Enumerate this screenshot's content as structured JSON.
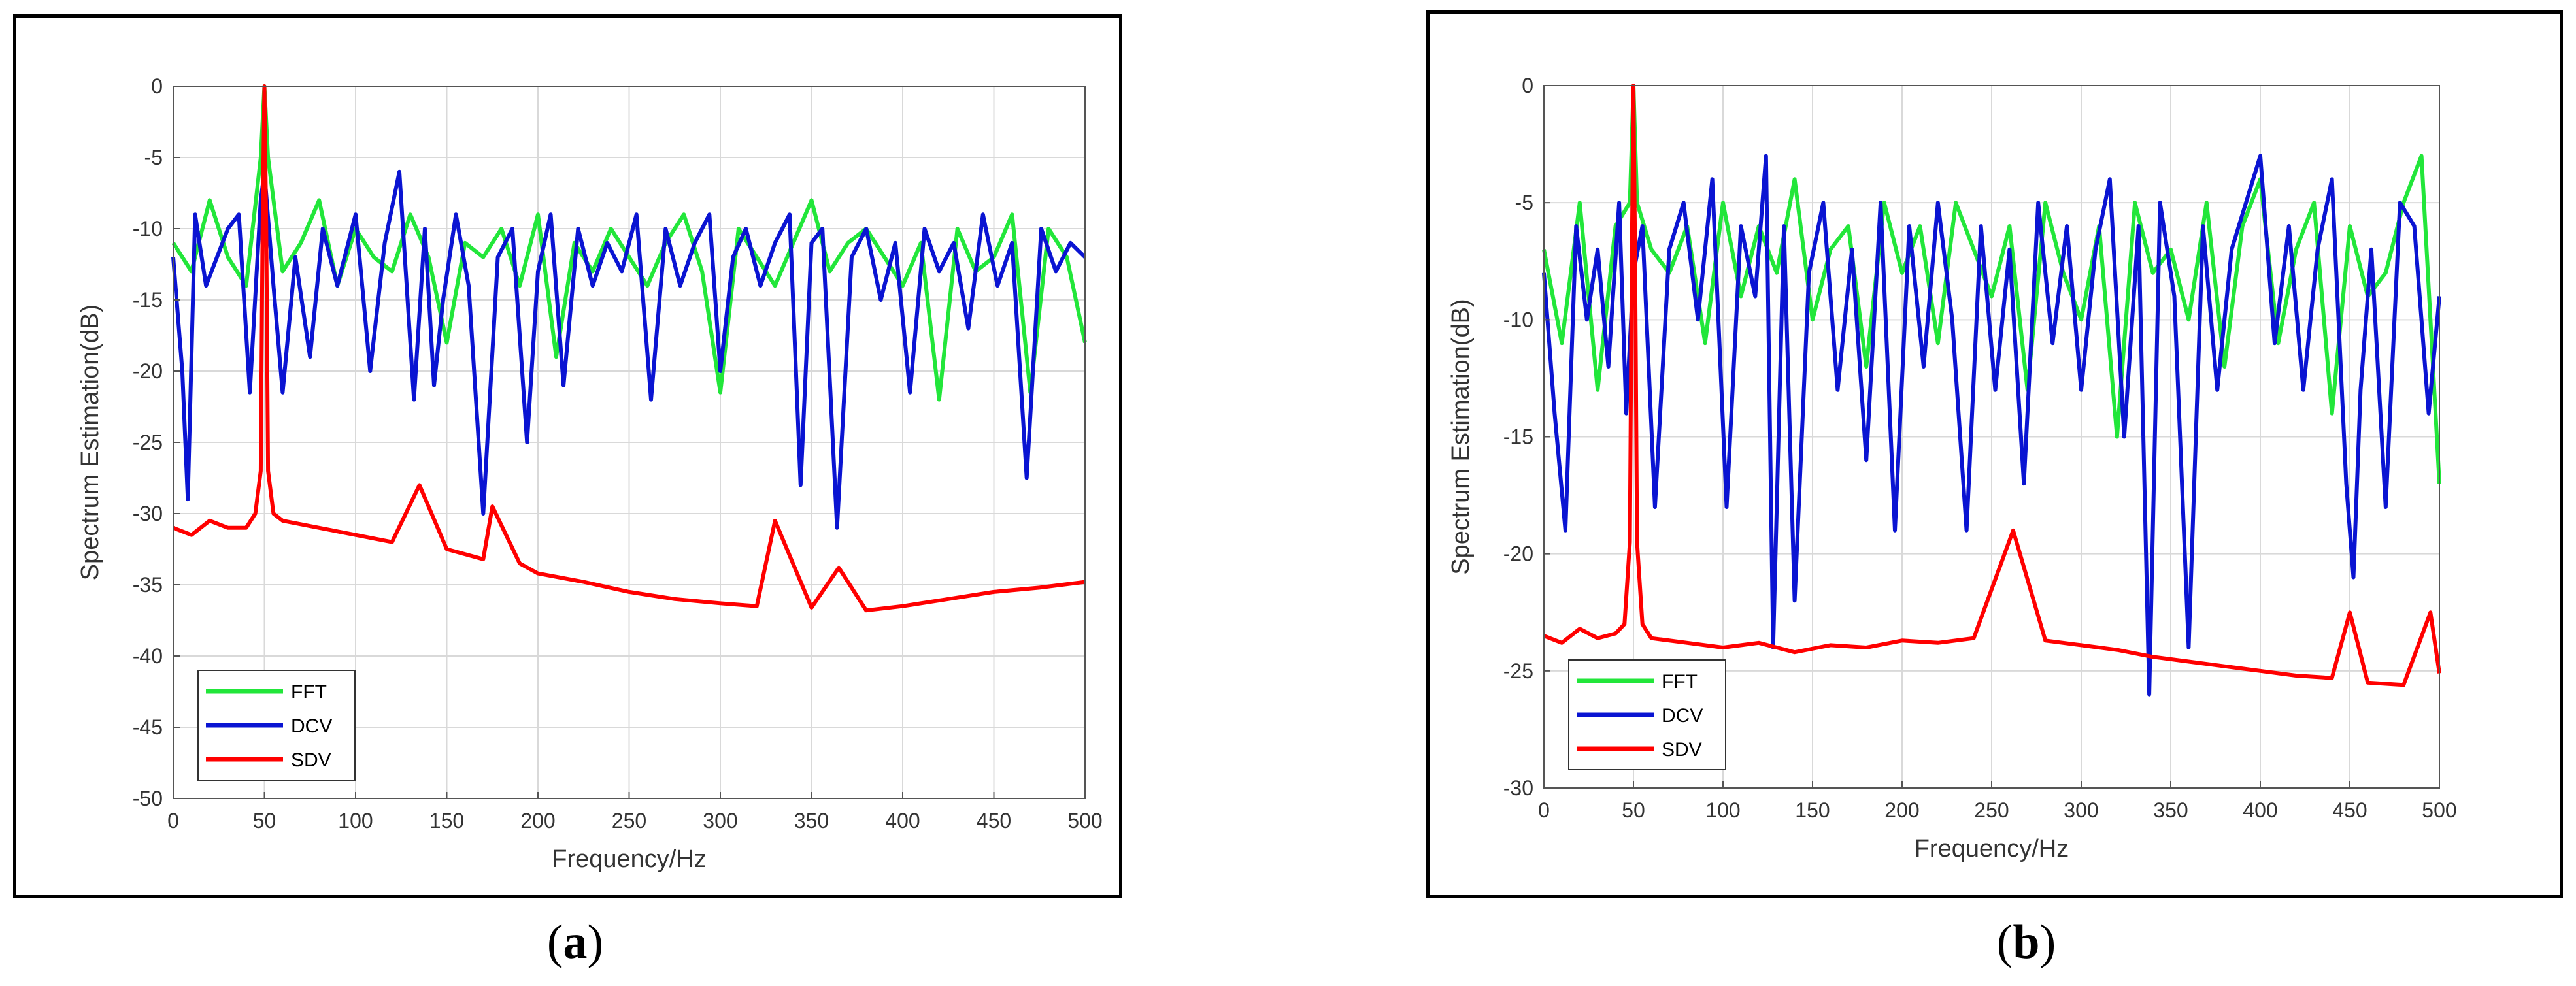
{
  "captions": [
    {
      "open": "(",
      "letter": "a",
      "close": ")"
    },
    {
      "open": "(",
      "letter": "b",
      "close": ")"
    }
  ],
  "colors": {
    "FFT": "#22e63a",
    "DCV": "#0a14d2",
    "SDV": "#ff0000",
    "grid": "#d9d9d9"
  },
  "chart_data": [
    {
      "type": "line",
      "title": "",
      "xlabel": "Frequency/Hz",
      "ylabel": "Spectrum Estimation(dB)",
      "xlim": [
        0,
        500
      ],
      "ylim": [
        -50,
        0
      ],
      "xticks": [
        0,
        50,
        100,
        150,
        200,
        250,
        300,
        350,
        400,
        450,
        500
      ],
      "yticks": [
        0,
        -5,
        -10,
        -15,
        -20,
        -25,
        -30,
        -35,
        -40,
        -45,
        -50
      ],
      "grid": true,
      "legend_position": "bottom-left",
      "series": [
        {
          "name": "FFT",
          "color": "#22e63a",
          "x": [
            0,
            10,
            20,
            30,
            40,
            48,
            50,
            52,
            60,
            70,
            80,
            90,
            100,
            110,
            120,
            130,
            140,
            150,
            160,
            170,
            180,
            190,
            200,
            210,
            220,
            230,
            240,
            250,
            260,
            270,
            280,
            290,
            300,
            310,
            320,
            330,
            340,
            350,
            360,
            370,
            380,
            390,
            400,
            410,
            420,
            430,
            440,
            450,
            460,
            470,
            480,
            490,
            500
          ],
          "y": [
            -11,
            -13,
            -8,
            -12,
            -14,
            -5,
            0,
            -5,
            -13,
            -11,
            -8,
            -14,
            -10,
            -12,
            -13,
            -9,
            -12,
            -18,
            -11,
            -12,
            -10,
            -14,
            -9,
            -19,
            -11,
            -13,
            -10,
            -12,
            -14,
            -11,
            -9,
            -13,
            -21.5,
            -10,
            -12,
            -14,
            -11,
            -8,
            -13,
            -11,
            -10,
            -12,
            -14,
            -11,
            -22,
            -10,
            -13,
            -12,
            -9,
            -21.5,
            -10,
            -12,
            -18
          ]
        },
        {
          "name": "DCV",
          "color": "#0a14d2",
          "x": [
            0,
            5,
            8,
            12,
            18,
            24,
            30,
            36,
            42,
            48,
            50,
            55,
            60,
            67,
            75,
            82,
            90,
            100,
            108,
            116,
            124,
            132,
            138,
            143,
            148,
            155,
            162,
            170,
            178,
            186,
            194,
            200,
            207,
            214,
            222,
            230,
            238,
            246,
            254,
            262,
            270,
            278,
            286,
            294,
            300,
            307,
            314,
            322,
            330,
            338,
            344,
            350,
            356,
            364,
            372,
            380,
            388,
            396,
            404,
            412,
            420,
            428,
            436,
            444,
            452,
            460,
            468,
            476,
            484,
            492,
            500
          ],
          "y": [
            -12,
            -20,
            -29,
            -9,
            -14,
            -12,
            -10,
            -9,
            -21.5,
            -8,
            -6,
            -14,
            -21.5,
            -12,
            -19,
            -10,
            -14,
            -9,
            -20,
            -11,
            -6,
            -22,
            -10,
            -21,
            -15,
            -9,
            -14,
            -30,
            -12,
            -10,
            -25,
            -13,
            -9,
            -21,
            -10,
            -14,
            -11,
            -13,
            -9,
            -22,
            -10,
            -14,
            -11,
            -9,
            -20,
            -12,
            -10,
            -14,
            -11,
            -9,
            -28,
            -11,
            -10,
            -31,
            -12,
            -10,
            -15,
            -11,
            -21.5,
            -10,
            -13,
            -11,
            -17,
            -9,
            -14,
            -11,
            -27.5,
            -10,
            -13,
            -11,
            -12
          ]
        },
        {
          "name": "SDV",
          "color": "#ff0000",
          "x": [
            0,
            10,
            20,
            30,
            40,
            45,
            48,
            49,
            50,
            51,
            52,
            55,
            60,
            80,
            100,
            120,
            135,
            150,
            170,
            175,
            190,
            200,
            225,
            250,
            275,
            300,
            320,
            330,
            350,
            365,
            380,
            400,
            425,
            450,
            475,
            500
          ],
          "y": [
            -31,
            -31.5,
            -30.5,
            -31,
            -31,
            -30,
            -27,
            -10,
            0,
            -10,
            -27,
            -30,
            -30.5,
            -31,
            -31.5,
            -32,
            -28,
            -32.5,
            -33.2,
            -29.5,
            -33.5,
            -34.2,
            -34.8,
            -35.5,
            -36,
            -36.3,
            -36.5,
            -30.5,
            -36.6,
            -33.8,
            -36.8,
            -36.5,
            -36,
            -35.5,
            -35.2,
            -34.8
          ]
        }
      ]
    },
    {
      "type": "line",
      "title": "",
      "xlabel": "Frequency/Hz",
      "ylabel": "Spectrum Estimation(dB)",
      "xlim": [
        0,
        500
      ],
      "ylim": [
        -30,
        0
      ],
      "xticks": [
        0,
        50,
        100,
        150,
        200,
        250,
        300,
        350,
        400,
        450,
        500
      ],
      "yticks": [
        0,
        -5,
        -10,
        -15,
        -20,
        -25,
        -30
      ],
      "grid": true,
      "legend_position": "bottom-left",
      "series": [
        {
          "name": "FFT",
          "color": "#22e63a",
          "x": [
            0,
            10,
            20,
            30,
            40,
            48,
            50,
            52,
            60,
            70,
            80,
            90,
            100,
            110,
            120,
            130,
            140,
            150,
            160,
            170,
            180,
            190,
            200,
            210,
            220,
            230,
            240,
            250,
            260,
            270,
            280,
            290,
            300,
            310,
            320,
            330,
            340,
            350,
            360,
            370,
            380,
            390,
            400,
            410,
            420,
            430,
            440,
            450,
            460,
            470,
            480,
            490,
            500
          ],
          "y": [
            -7,
            -11,
            -5,
            -13,
            -6,
            -5,
            0,
            -5,
            -7,
            -8,
            -6,
            -11,
            -5,
            -9,
            -6,
            -8,
            -4,
            -10,
            -7,
            -6,
            -12,
            -5,
            -8,
            -6,
            -11,
            -5,
            -7,
            -9,
            -6,
            -13,
            -5,
            -8,
            -10,
            -6,
            -15,
            -5,
            -8,
            -7,
            -10,
            -5,
            -12,
            -6,
            -4,
            -11,
            -7,
            -5,
            -14,
            -6,
            -9,
            -8,
            -5,
            -3,
            -17
          ]
        },
        {
          "name": "DCV",
          "color": "#0a14d2",
          "x": [
            0,
            6,
            12,
            18,
            24,
            30,
            36,
            42,
            46,
            50,
            55,
            62,
            70,
            78,
            86,
            94,
            102,
            110,
            118,
            124,
            128,
            134,
            140,
            148,
            156,
            164,
            172,
            180,
            188,
            196,
            204,
            212,
            220,
            228,
            236,
            244,
            252,
            260,
            268,
            276,
            284,
            292,
            300,
            308,
            316,
            324,
            332,
            338,
            344,
            352,
            360,
            368,
            376,
            384,
            392,
            400,
            408,
            416,
            424,
            432,
            440,
            448,
            452,
            456,
            462,
            470,
            478,
            486,
            494,
            500
          ],
          "y": [
            -8,
            -14,
            -19,
            -6,
            -10,
            -7,
            -12,
            -5,
            -14,
            -8,
            -6,
            -18,
            -7,
            -5,
            -10,
            -4,
            -18,
            -6,
            -9,
            -3,
            -24,
            -6,
            -22,
            -8,
            -5,
            -13,
            -7,
            -16,
            -5,
            -19,
            -6,
            -12,
            -5,
            -10,
            -19,
            -6,
            -13,
            -7,
            -17,
            -5,
            -11,
            -6,
            -13,
            -7,
            -4,
            -15,
            -6,
            -26,
            -5,
            -9,
            -24,
            -6,
            -13,
            -7,
            -5,
            -3,
            -11,
            -6,
            -13,
            -7,
            -4,
            -17,
            -21,
            -13,
            -7,
            -18,
            -5,
            -6,
            -14,
            -9
          ]
        },
        {
          "name": "SDV",
          "color": "#ff0000",
          "x": [
            0,
            10,
            20,
            30,
            40,
            45,
            48,
            49,
            50,
            51,
            52,
            55,
            60,
            80,
            100,
            120,
            140,
            160,
            180,
            200,
            220,
            240,
            262,
            280,
            300,
            320,
            340,
            360,
            380,
            400,
            420,
            440,
            450,
            460,
            480,
            495,
            500
          ],
          "y": [
            -23.5,
            -23.8,
            -23.2,
            -23.6,
            -23.4,
            -23,
            -19.5,
            -8,
            0,
            -8,
            -19.5,
            -23,
            -23.6,
            -23.8,
            -24,
            -23.8,
            -24.2,
            -23.9,
            -24,
            -23.7,
            -23.8,
            -23.6,
            -19,
            -23.7,
            -23.9,
            -24.1,
            -24.4,
            -24.6,
            -24.8,
            -25,
            -25.2,
            -25.3,
            -22.5,
            -25.5,
            -25.6,
            -22.5,
            -25.1
          ]
        }
      ]
    }
  ]
}
